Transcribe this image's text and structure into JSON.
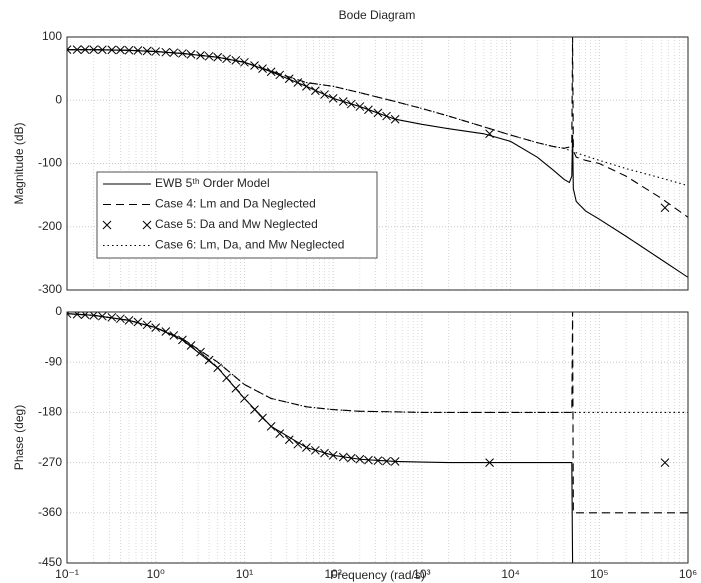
{
  "chart_data": [
    {
      "type": "line",
      "title": "Bode Diagram",
      "ylabel": "Magnitude (dB)",
      "x": [
        0.1,
        0.2,
        0.5,
        1,
        2,
        5,
        10,
        20,
        50,
        100,
        200,
        500,
        1000,
        2000,
        5000,
        10000,
        20000,
        30000,
        40000,
        46000,
        49000,
        50000,
        51000,
        55000,
        70000,
        100000,
        200000,
        500000,
        1000000
      ],
      "series": [
        {
          "name": "EWB 5ᵗʰ Order Model",
          "style": "solid",
          "color": "#000000",
          "values": [
            80,
            80,
            79,
            77,
            74,
            68,
            60,
            45,
            22,
            3,
            -10,
            -30,
            -38,
            -45,
            -53,
            -65,
            -90,
            -110,
            -125,
            -130,
            -120,
            -55,
            -140,
            -160,
            -175,
            -188,
            -215,
            -252,
            -280
          ]
        },
        {
          "name": "Case 4: Lm and Da Neglected",
          "style": "dashed",
          "color": "#000000",
          "values": [
            80,
            80,
            79,
            77,
            74,
            68,
            60,
            46,
            28,
            22,
            12,
            -2,
            -13,
            -25,
            -42,
            -55,
            -67,
            -73,
            -76,
            -74,
            -65,
            100,
            -80,
            -90,
            -95,
            -100,
            -120,
            -155,
            -185
          ]
        },
        {
          "name": "Case 5: Da and Mw Neglected",
          "style": "markers",
          "color": "#000000",
          "x": [
            0.1,
            0.13,
            0.16,
            0.2,
            0.25,
            0.32,
            0.4,
            0.5,
            0.63,
            0.8,
            1,
            1.3,
            1.6,
            2,
            2.5,
            3.2,
            4,
            5,
            6.3,
            8,
            10,
            13,
            16,
            20,
            25,
            32,
            40,
            50,
            63,
            80,
            100,
            130,
            160,
            200,
            250,
            320,
            400,
            500,
            5800,
            550000
          ],
          "values": [
            80,
            80,
            80,
            80,
            79.8,
            79.6,
            79.4,
            79,
            78.6,
            77.9,
            77,
            76,
            75.2,
            74,
            72.5,
            71,
            69.5,
            68,
            65.5,
            63,
            60,
            55,
            50,
            45,
            40,
            34,
            28,
            22,
            15,
            9,
            3,
            -2,
            -6,
            -10,
            -15,
            -20,
            -25,
            -30,
            -53,
            -170
          ]
        },
        {
          "name": "Case 6: Lm, Da, and Mw Neglected",
          "style": "dotted",
          "color": "#000000",
          "values": [
            80,
            80,
            79,
            77,
            74,
            68,
            60,
            46,
            28,
            22,
            12,
            -2,
            -13,
            -25,
            -42,
            -55,
            -67,
            -73,
            -76,
            -79,
            -80,
            -80.5,
            -81,
            -83,
            -88,
            -95,
            -108,
            -123,
            -135
          ]
        }
      ],
      "xlim": [
        0.1,
        1000000
      ],
      "xscale": "log",
      "xticks": [
        0.1,
        1,
        10,
        100,
        1000,
        10000,
        100000,
        1000000
      ],
      "ylim": [
        -300,
        100
      ],
      "yticks": [
        -300,
        -200,
        -100,
        0,
        100
      ],
      "grid": true,
      "minor_grid": true,
      "legend": "lower left"
    },
    {
      "type": "line",
      "ylabel": "Phase (deg)",
      "xlabel": "Frequency  (rad/s)",
      "x": [
        0.1,
        0.2,
        0.5,
        1,
        2,
        5,
        10,
        20,
        50,
        100,
        200,
        500,
        1000,
        2000,
        5000,
        10000,
        20000,
        30000,
        40000,
        46000,
        49000,
        50000,
        51000,
        55000,
        70000,
        100000,
        200000,
        500000,
        1000000
      ],
      "series": [
        {
          "style": "solid",
          "color": "#000000",
          "values": [
            -3,
            -6,
            -15,
            -28,
            -50,
            -100,
            -155,
            -205,
            -243,
            -257,
            -264,
            -268,
            -269,
            -270,
            -270,
            -270,
            -270,
            -270,
            -270,
            -270,
            -270,
            -450,
            -450,
            -450,
            -450,
            -450,
            -450,
            -450,
            -450
          ]
        },
        {
          "style": "dashed",
          "color": "#000000",
          "values": [
            -3,
            -6,
            -15,
            -28,
            -48,
            -90,
            -130,
            -155,
            -170,
            -175,
            -178,
            -179,
            -180,
            -180,
            -180,
            -180,
            -180,
            -180,
            -180,
            -180,
            -180,
            0,
            -360,
            -360,
            -360,
            -360,
            -360,
            -360,
            -360
          ]
        },
        {
          "style": "markers",
          "color": "#000000",
          "x": [
            0.1,
            0.13,
            0.16,
            0.2,
            0.25,
            0.32,
            0.4,
            0.5,
            0.63,
            0.8,
            1,
            1.3,
            1.6,
            2,
            2.5,
            3.2,
            4,
            5,
            6.3,
            8,
            10,
            13,
            16,
            20,
            25,
            32,
            40,
            50,
            63,
            80,
            100,
            130,
            160,
            200,
            250,
            320,
            400,
            500,
            5800,
            550000
          ],
          "values": [
            -3,
            -4,
            -5,
            -6,
            -7.5,
            -9.5,
            -12,
            -15,
            -18,
            -23,
            -28,
            -35,
            -42,
            -50,
            -60,
            -72,
            -86,
            -100,
            -118,
            -137,
            -155,
            -175,
            -190,
            -205,
            -218,
            -229,
            -237,
            -243,
            -248,
            -253,
            -257,
            -260,
            -262,
            -264,
            -265.5,
            -266.5,
            -267.5,
            -268,
            -270,
            -270
          ]
        },
        {
          "style": "dotted",
          "color": "#000000",
          "values": [
            -3,
            -6,
            -15,
            -28,
            -48,
            -90,
            -130,
            -155,
            -170,
            -175,
            -178,
            -179,
            -180,
            -180,
            -180,
            -180,
            -180,
            -180,
            -180,
            -180,
            -180,
            -180,
            -180,
            -180,
            -180,
            -180,
            -180,
            -180,
            -180
          ]
        }
      ],
      "xlim": [
        0.1,
        1000000
      ],
      "xscale": "log",
      "xticks": [
        {
          "value": 0.1,
          "label": "10⁻¹"
        },
        {
          "value": 1,
          "label": "10⁰"
        },
        {
          "value": 10,
          "label": "10¹"
        },
        {
          "value": 100,
          "label": "10²"
        },
        {
          "value": 1000,
          "label": "10³"
        },
        {
          "value": 10000,
          "label": "10⁴"
        },
        {
          "value": 100000,
          "label": "10⁵"
        },
        {
          "value": 1000000,
          "label": "10⁶"
        }
      ],
      "ylim": [
        -450,
        0
      ],
      "yticks": [
        -450,
        -360,
        -270,
        -180,
        -90,
        0
      ],
      "grid": true,
      "minor_grid": true
    }
  ]
}
